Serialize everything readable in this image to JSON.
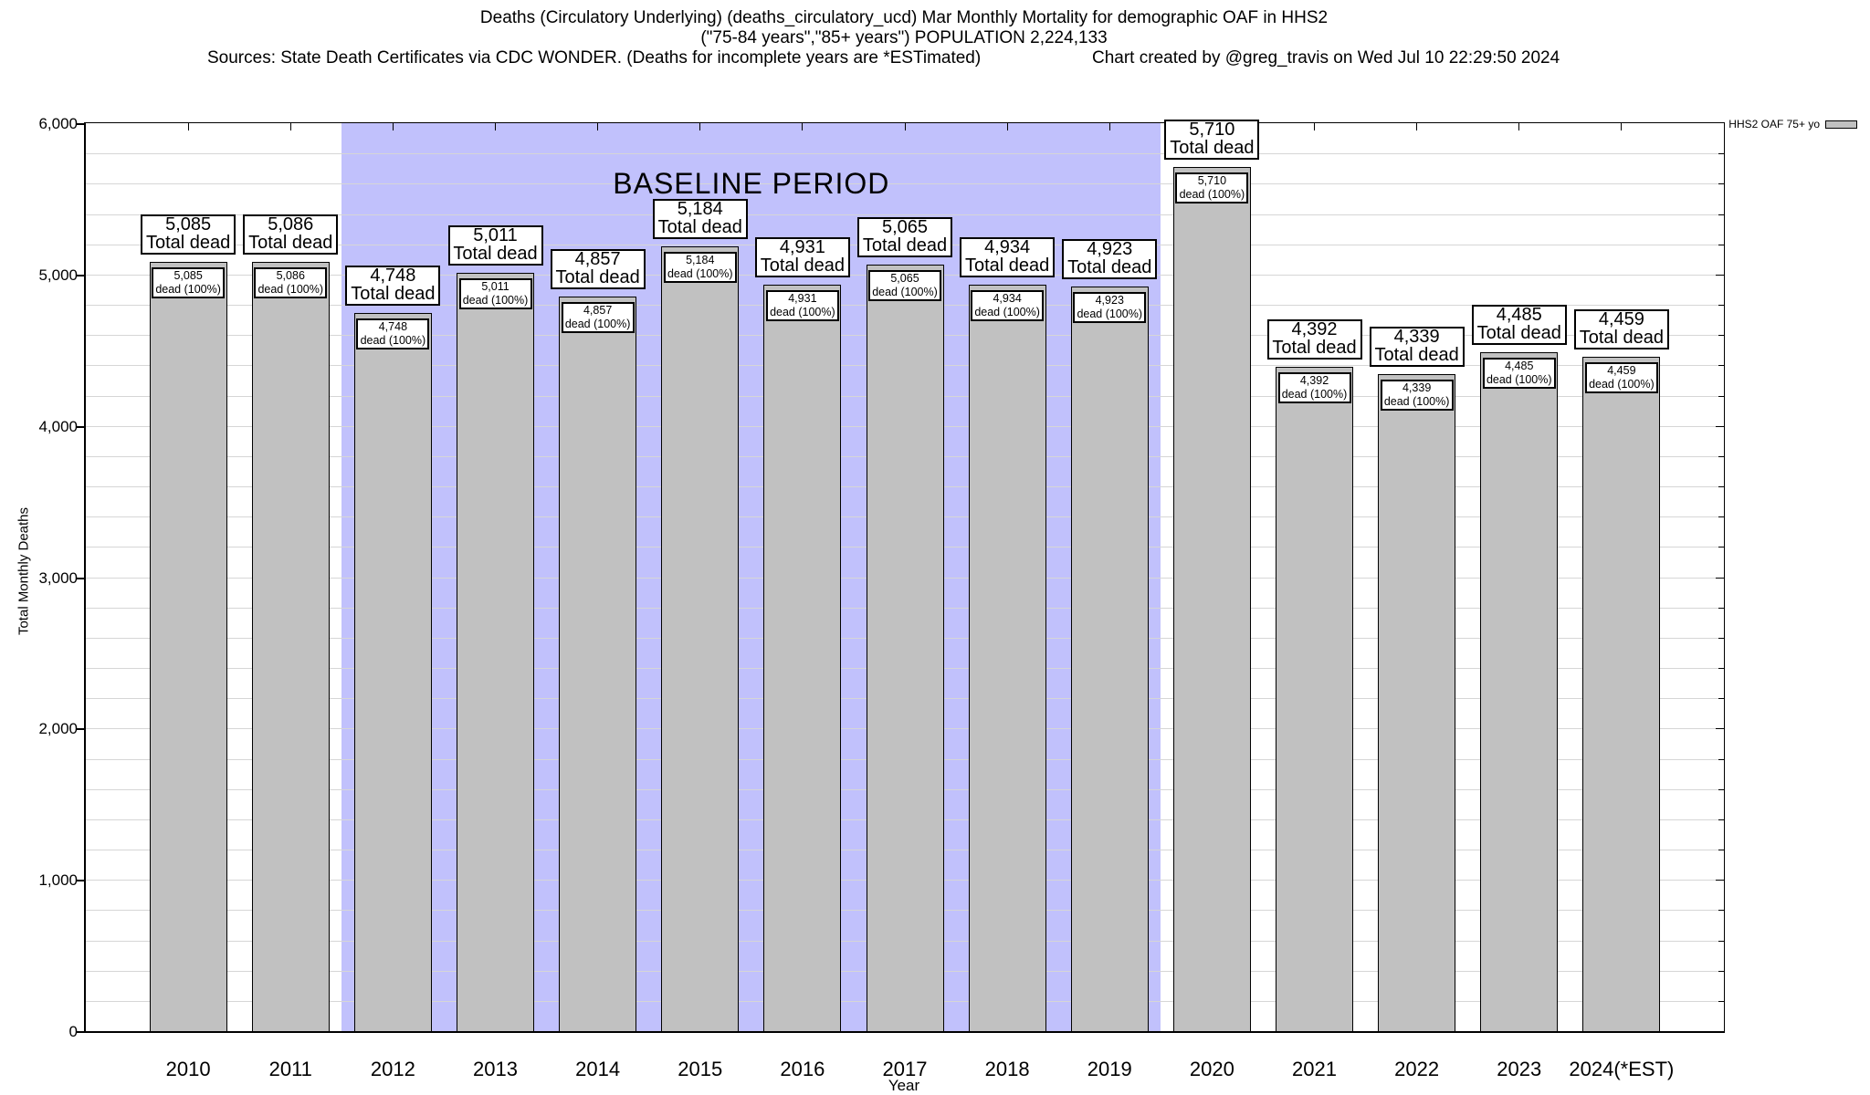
{
  "header": {
    "title_line1": "Deaths (Circulatory Underlying) (deaths_circulatory_ucd) Mar Monthly Mortality for demographic OAF in HHS2",
    "title_line2": "(\"75-84 years\",\"85+ years\") POPULATION 2,224,133",
    "sources": "Sources: State Death Certificates via CDC WONDER. (Deaths for incomplete years are *ESTimated)",
    "credit": "Chart created by @greg_travis on Wed Jul 10 22:29:50 2024"
  },
  "chart_data": {
    "type": "bar",
    "title": "Deaths (Circulatory Underlying) (deaths_circulatory_ucd) Mar Monthly Mortality for demographic OAF in HHS2",
    "subtitle": "(\"75-84 years\",\"85+ years\") POPULATION 2,224,133",
    "categories": [
      "2010",
      "2011",
      "2012",
      "2013",
      "2014",
      "2015",
      "2016",
      "2017",
      "2018",
      "2019",
      "2020",
      "2021",
      "2022",
      "2023",
      "2024(*EST)"
    ],
    "series": [
      {
        "name": "HHS2 OAF 75+ yo",
        "values": [
          5085,
          5086,
          4748,
          5011,
          4857,
          5184,
          4931,
          5065,
          4934,
          4923,
          5710,
          4392,
          4339,
          4485,
          4459
        ]
      }
    ],
    "bar_top_label_suffix": "Total dead",
    "bar_inner_label_suffix": "dead (100%)",
    "xlabel": "Year",
    "ylabel": "Total Monthly Deaths",
    "ylim": [
      0,
      6000
    ],
    "ytick_step": 1000,
    "minor_grid_step": 200,
    "grid": true,
    "legend_position": "top-right",
    "colors": {
      "bar_fill": "#c1c1c1",
      "bar_border": "#000000",
      "baseline_fill": "#c1c1fc",
      "gridline": "#d6d6d6"
    },
    "baseline": {
      "label": "BASELINE PERIOD",
      "start_category": "2012",
      "end_category": "2019"
    }
  }
}
